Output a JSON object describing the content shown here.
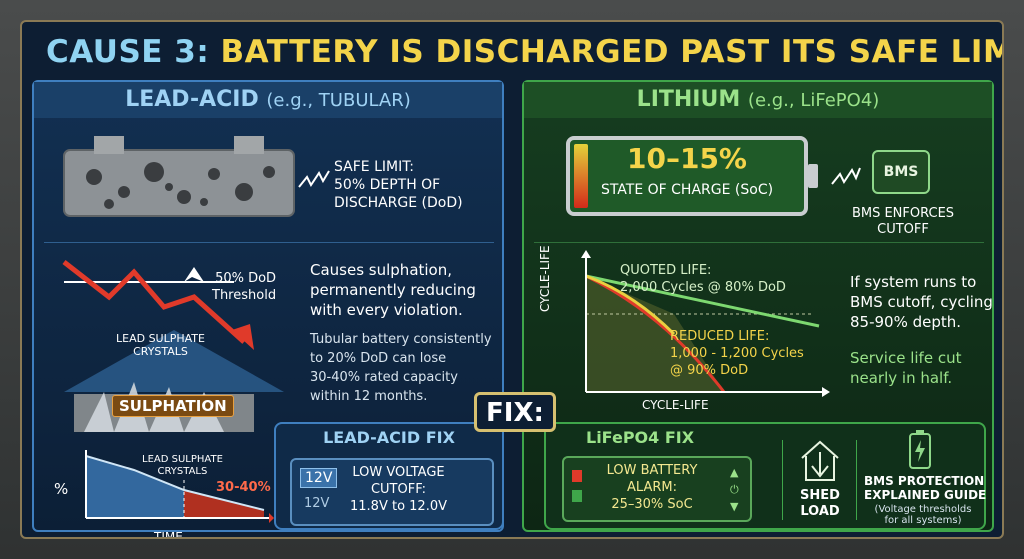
{
  "title": {
    "prefix": "CAUSE 3:",
    "text": "BATTERY IS DISCHARGED PAST ITS SAFE LIMIT"
  },
  "lead_acid": {
    "header": "LEAD-ACID",
    "header_example": "(e.g., TUBULAR)",
    "safe_limit": [
      "SAFE LIMIT:",
      "50% DEPTH OF",
      "DISCHARGE (DoD)"
    ],
    "threshold": [
      "50% DoD",
      "Threshold"
    ],
    "crystals_label": [
      "LEAD SULPHATE",
      "CRYSTALS"
    ],
    "sulphation_label": "SULPHATION",
    "main_text": [
      "Causes sulphation,",
      "permanently reducing",
      "with every violation."
    ],
    "detail_text": [
      "Tubular battery consistently",
      "to 20% DoD can lose",
      "30-40% rated capacity",
      "within 12 months."
    ],
    "graph": {
      "y_label": "%",
      "x_label": "TIME",
      "crystals_label": [
        "LEAD SULPHATE",
        "CRYSTALS"
      ],
      "loss_label": "30-40%"
    },
    "fix": {
      "title": "LEAD-ACID FIX",
      "chip_top": "12V",
      "chip_bottom": "12V",
      "cutoff": [
        "LOW VOLTAGE",
        "CUTOFF:",
        "11.8V to 12.0V"
      ]
    }
  },
  "fix_badge": "FIX:",
  "lithium": {
    "header": "LITHIUM",
    "header_example": "(e.g., LiFePO4)",
    "soc_value": "10–15%",
    "soc_label": "STATE OF CHARGE (SoC)",
    "bms_chip": "BMS",
    "bms_label": [
      "BMS ENFORCES",
      "CUTOFF"
    ],
    "chart": {
      "y_label": "CYCLE-LIFE",
      "x_label": "CYCLE-LIFE",
      "quoted": [
        "QUOTED LIFE:",
        "2,000 Cycles @ 80% DoD"
      ],
      "reduced": [
        "REDUCED LIFE:",
        "1,000 - 1,200 Cycles",
        "@ 90% DoD"
      ]
    },
    "side_text": [
      "If system runs to",
      "BMS cutoff, cycling",
      "85-90% depth."
    ],
    "side_text2": [
      "Service life cut",
      "nearly in half."
    ],
    "fix": {
      "title": "LiFePO4 FIX",
      "alarm": [
        "LOW BATTERY",
        "ALARM:",
        "25–30% SoC"
      ],
      "shed": [
        "SHED",
        "LOAD"
      ],
      "guide": [
        "BMS PROTECTION",
        "EXPLAINED GUIDE"
      ],
      "guide_note": [
        "(Voltage thresholds",
        "for all systems)"
      ]
    }
  },
  "colors": {
    "lead_accent": "#3f7fbf",
    "lithium_accent": "#3fa64a",
    "title_yellow": "#f4d44a",
    "warn_red": "#e03a2a"
  }
}
